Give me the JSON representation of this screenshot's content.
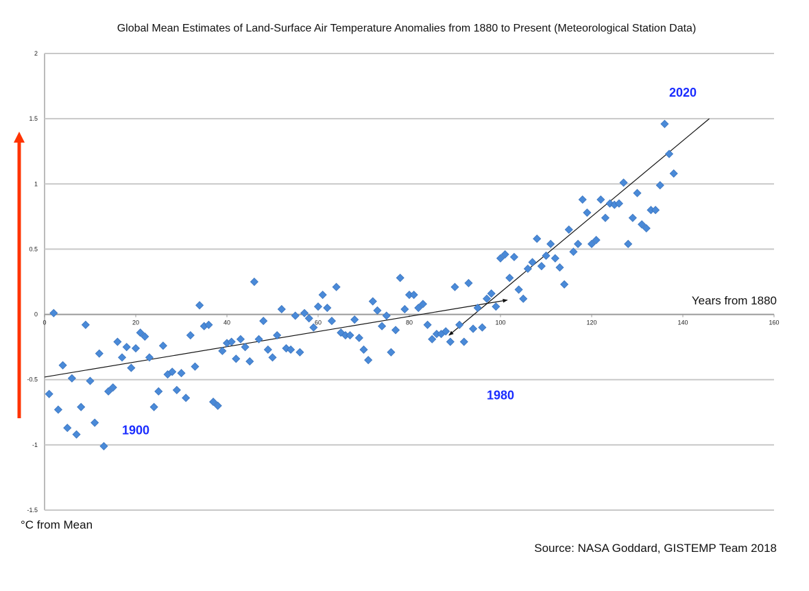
{
  "chart_data": {
    "type": "scatter",
    "title": "Global Mean Estimates of Land-Surface Air Temperature Anomalies from 1880 to Present (Meteorological Station Data)",
    "xlabel": "Years from 1880",
    "ylabel": "°C from Mean",
    "source": "Source: NASA Goddard, GISTEMP Team 2018",
    "xlim": [
      0,
      160
    ],
    "ylim": [
      -1.5,
      2
    ],
    "xticks": [
      "0",
      "20",
      "40",
      "60",
      "80",
      "100",
      "120",
      "140",
      "160"
    ],
    "yticks": [
      "-1.5",
      "-1",
      "-0.5",
      "0",
      "0.5",
      "1",
      "1.5",
      "2"
    ],
    "grid": "horizontal",
    "marker_color": "#4a8ad8",
    "annotations": [
      {
        "text": "1900",
        "x": 20,
        "y": -0.92
      },
      {
        "text": "1980",
        "x": 100,
        "y": -0.65
      },
      {
        "text": "2020",
        "x": 140,
        "y": 1.67
      }
    ],
    "annotation_color": "#1a2cff",
    "arrow_color": "#ff3300",
    "trend_lines": [
      {
        "from": [
          0,
          -0.48
        ],
        "to": [
          101.5,
          0.11
        ],
        "arrowhead": "end"
      },
      {
        "from": [
          88.7,
          -0.16
        ],
        "to": [
          145.8,
          1.5
        ],
        "arrowhead": "start"
      }
    ],
    "x": [
      1,
      2,
      3,
      4,
      5,
      6,
      7,
      8,
      9,
      10,
      11,
      12,
      13,
      14,
      15,
      16,
      17,
      18,
      19,
      20,
      21,
      22,
      23,
      24,
      25,
      26,
      27,
      28,
      29,
      30,
      31,
      32,
      33,
      34,
      35,
      36,
      37,
      38,
      39,
      40,
      41,
      42,
      43,
      44,
      45,
      46,
      47,
      48,
      49,
      50,
      51,
      52,
      53,
      54,
      55,
      56,
      57,
      58,
      59,
      60,
      61,
      62,
      63,
      64,
      65,
      66,
      67,
      68,
      69,
      70,
      71,
      72,
      73,
      74,
      75,
      76,
      77,
      78,
      79,
      80,
      81,
      82,
      83,
      84,
      85,
      86,
      87,
      88,
      89,
      90,
      91,
      92,
      93,
      94,
      95,
      96,
      97,
      98,
      99,
      100,
      101,
      102,
      103,
      104,
      105,
      106,
      107,
      108,
      109,
      110,
      111,
      112,
      113,
      114,
      115,
      116,
      117,
      118,
      119,
      120,
      121,
      122,
      123,
      124,
      125,
      126,
      127,
      128,
      129,
      130,
      131,
      132,
      133,
      134,
      135,
      136,
      137,
      138
    ],
    "y": [
      -0.61,
      0.01,
      -0.73,
      -0.39,
      -0.87,
      -0.49,
      -0.92,
      -0.71,
      -0.08,
      -0.51,
      -0.83,
      -0.3,
      -1.01,
      -0.59,
      -0.56,
      -0.21,
      -0.33,
      -0.25,
      -0.41,
      -0.26,
      -0.14,
      -0.17,
      -0.33,
      -0.71,
      -0.59,
      -0.24,
      -0.46,
      -0.44,
      -0.58,
      -0.45,
      -0.64,
      -0.16,
      -0.4,
      0.07,
      -0.09,
      -0.08,
      -0.67,
      -0.7,
      -0.28,
      -0.22,
      -0.21,
      -0.34,
      -0.19,
      -0.25,
      -0.36,
      0.25,
      -0.19,
      -0.05,
      -0.27,
      -0.33,
      -0.16,
      0.04,
      -0.26,
      -0.27,
      -0.01,
      -0.29,
      0.01,
      -0.03,
      -0.1,
      0.06,
      0.15,
      0.05,
      -0.05,
      0.21,
      -0.14,
      -0.16,
      -0.16,
      -0.04,
      -0.18,
      -0.27,
      -0.35,
      0.1,
      0.03,
      -0.09,
      -0.01,
      -0.29,
      -0.12,
      0.28,
      0.04,
      0.15,
      0.15,
      0.05,
      0.08,
      -0.08,
      -0.19,
      -0.15,
      -0.15,
      -0.13,
      -0.21,
      0.21,
      -0.08,
      -0.21,
      0.24,
      -0.11,
      0.05,
      -0.1,
      0.12,
      0.16,
      0.06,
      0.43,
      0.46,
      0.28,
      0.44,
      0.19,
      0.12,
      0.35,
      0.4,
      0.58,
      0.37,
      0.45,
      0.54,
      0.43,
      0.36,
      0.23,
      0.65,
      0.48,
      0.54,
      0.88,
      0.78,
      0.54,
      0.57,
      0.88,
      0.74,
      0.85,
      0.84,
      0.85,
      1.01,
      0.54,
      0.74,
      0.93,
      0.69,
      0.66,
      0.8,
      0.8,
      0.99,
      1.46,
      1.23,
      1.08
    ]
  }
}
